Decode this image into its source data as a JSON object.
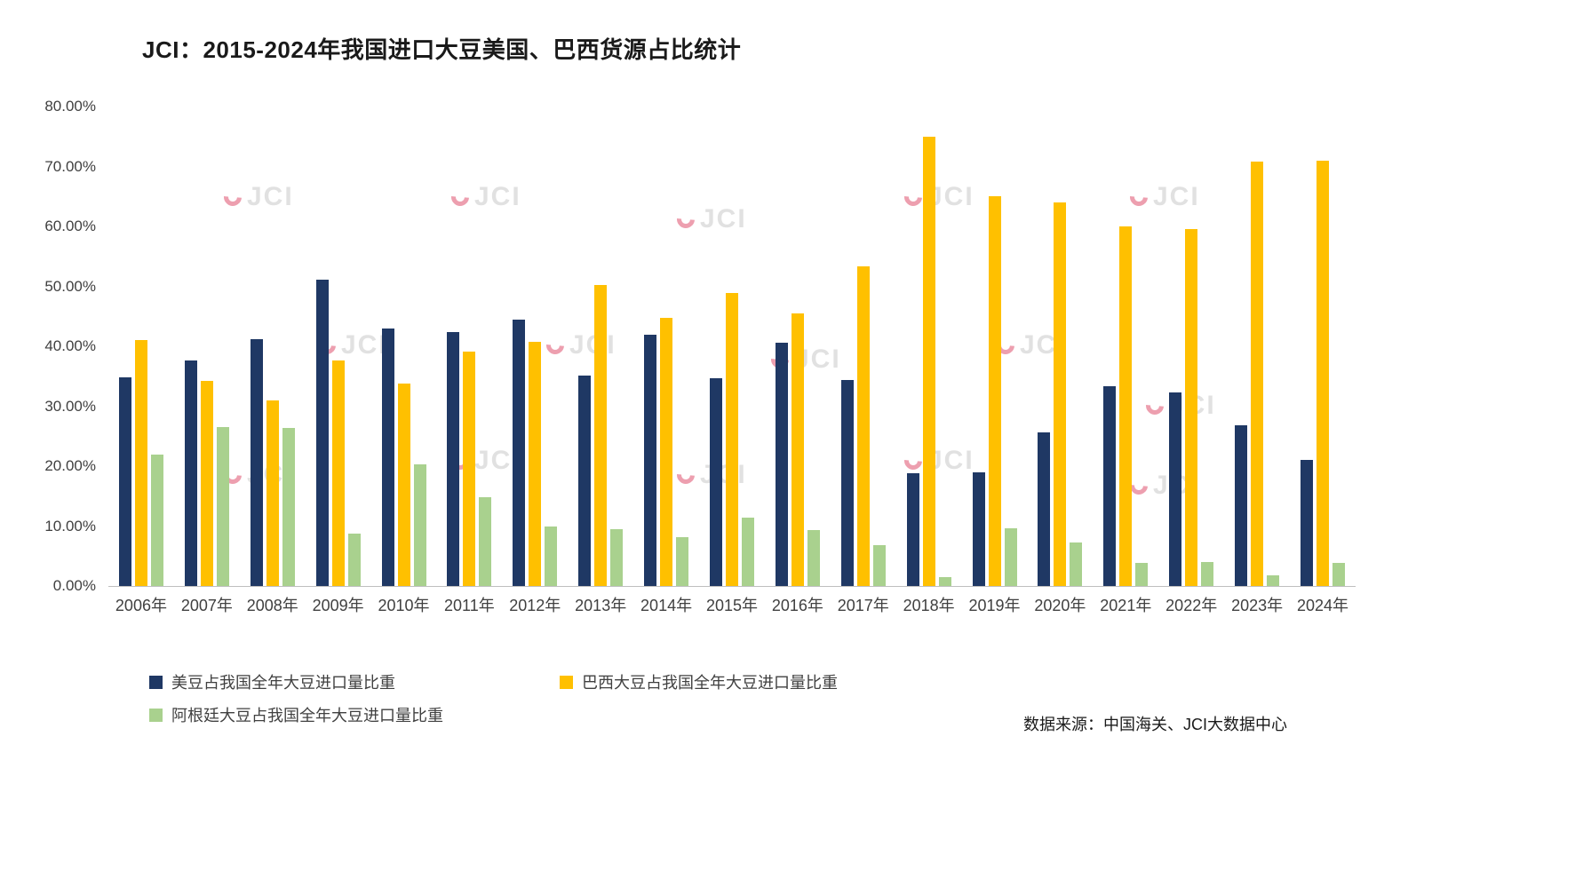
{
  "title": "JCI：2015-2024年我国进口大豆美国、巴西货源占比统计",
  "source_note": "数据来源：中国海关、JCI大数据中心",
  "watermark_text": "JCI",
  "chart_data": {
    "type": "bar",
    "title": "JCI：2015-2024年我国进口大豆美国、巴西货源占比统计",
    "categories": [
      "2006年",
      "2007年",
      "2008年",
      "2009年",
      "2010年",
      "2011年",
      "2012年",
      "2013年",
      "2014年",
      "2015年",
      "2016年",
      "2017年",
      "2018年",
      "2019年",
      "2020年",
      "2021年",
      "2022年",
      "2023年",
      "2024年"
    ],
    "series": [
      {
        "name": "美豆占我国全年大豆进口量比重",
        "color": "#1F3864",
        "values": [
          34.8,
          37.7,
          41.2,
          51.1,
          43.0,
          42.3,
          44.4,
          35.1,
          42.0,
          34.7,
          40.6,
          34.3,
          18.8,
          19.0,
          25.7,
          33.4,
          32.3,
          26.8,
          21.0
        ]
      },
      {
        "name": "巴西大豆占我国全年大豆进口量比重",
        "color": "#FFC000",
        "values": [
          41.0,
          34.2,
          31.0,
          37.6,
          33.8,
          39.1,
          40.7,
          50.2,
          44.7,
          48.9,
          45.5,
          53.3,
          75.0,
          65.0,
          64.0,
          60.0,
          59.5,
          70.8,
          70.9
        ]
      },
      {
        "name": "阿根廷大豆占我国全年大豆进口量比重",
        "color": "#A9D18E",
        "values": [
          22.0,
          26.5,
          26.3,
          8.8,
          20.3,
          14.8,
          10.0,
          9.5,
          8.1,
          11.4,
          9.4,
          6.8,
          1.5,
          9.7,
          7.3,
          3.8,
          4.0,
          1.8,
          3.9
        ]
      }
    ],
    "ylim": [
      0,
      80
    ],
    "yticks": [
      "80.00%",
      "70.00%",
      "60.00%",
      "50.00%",
      "40.00%",
      "30.00%",
      "20.00%",
      "10.00%",
      "0.00%"
    ],
    "xlabel": "",
    "ylabel": "",
    "grid": false,
    "legend_position": "bottom-left"
  }
}
